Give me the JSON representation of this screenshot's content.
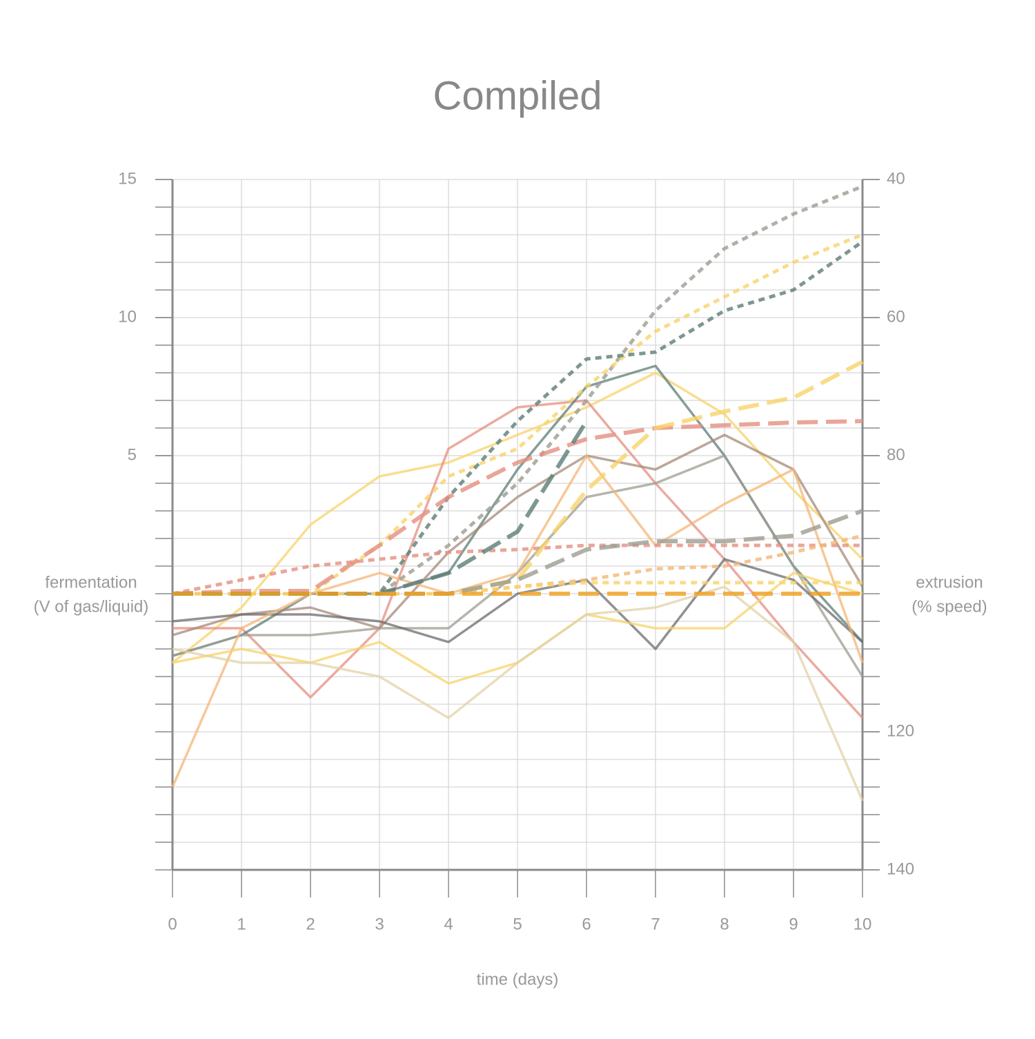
{
  "chart_data": {
    "type": "line",
    "title": "Compiled",
    "x_label": "time (days)",
    "y_label": [
      "fermentation",
      "(V of gas/liquid)"
    ],
    "y2_label": [
      "extrusion",
      "(% speed)"
    ],
    "x": [
      0,
      1,
      2,
      3,
      4,
      5,
      6,
      7,
      8,
      9,
      10
    ],
    "xlim": [
      0,
      10
    ],
    "xticks": [
      0,
      1,
      2,
      3,
      4,
      5,
      6,
      7,
      8,
      9,
      10
    ],
    "ylim": [
      -10,
      15
    ],
    "yticks": [
      5,
      10,
      15
    ],
    "y2lim": [
      140,
      40
    ],
    "y2ticks": [
      40,
      60,
      80,
      120,
      140
    ],
    "grid": true,
    "series": [
      {
        "color": "#f7d36a",
        "style": "solid",
        "values": [
          -2.5,
          -0.5,
          2.5,
          4.25,
          4.75,
          5.75,
          6.75,
          8,
          6.5,
          3.75,
          1.25
        ]
      },
      {
        "color": "#e58e80",
        "style": "solid",
        "values": [
          -1.25,
          -1.25,
          -3.75,
          -1.25,
          5.25,
          6.75,
          7,
          4,
          1.25,
          -1.75,
          -4.5
        ]
      },
      {
        "color": "#5c7d77",
        "style": "solid",
        "values": [
          -2.25,
          -1.5,
          0,
          0,
          0.75,
          4.5,
          7.5,
          8.25,
          5,
          1,
          -1.75
        ]
      },
      {
        "color": "#a68a78",
        "style": "solid",
        "values": [
          -1.5,
          -0.75,
          -0.5,
          -1.25,
          1.5,
          3.5,
          5,
          4.5,
          5.75,
          4.5,
          0.25
        ]
      },
      {
        "color": "#9c9c90",
        "style": "solid",
        "values": [
          -2.25,
          -1.5,
          -1.5,
          -1.25,
          -1.25,
          0.75,
          3.5,
          4,
          5,
          1,
          -3
        ]
      },
      {
        "color": "#6c6c6c",
        "style": "solid",
        "values": [
          -1,
          -0.75,
          -0.75,
          -1,
          -1.75,
          0,
          0.5,
          -2,
          1.25,
          0.5,
          -1.75
        ]
      },
      {
        "color": "#f4b676",
        "style": "solid",
        "values": [
          -7,
          -1.25,
          0,
          0.75,
          0,
          0.75,
          5,
          1.75,
          3.25,
          4.5,
          -2.5
        ]
      },
      {
        "color": "#f7d36a",
        "style": "solid",
        "values": [
          -2.5,
          -2,
          -2.5,
          -1.75,
          -3.25,
          -2.5,
          -0.75,
          -1.25,
          -1.25,
          0.75,
          0
        ]
      },
      {
        "color": "#e2d2a6",
        "style": "solid",
        "values": [
          -2,
          -2.5,
          -2.5,
          -3,
          -4.5,
          -2.5,
          -0.75,
          -0.5,
          0.25,
          -1.75,
          -7.5
        ]
      },
      {
        "color": "#9c9c90",
        "style": "dotted",
        "values": [
          0,
          0,
          0,
          0,
          1.75,
          4,
          7,
          10.25,
          12.5,
          13.75,
          14.75
        ]
      },
      {
        "color": "#f7d36a",
        "style": "dotted",
        "values": [
          0,
          0,
          0,
          1.75,
          4.25,
          5.25,
          7.5,
          9.5,
          10.75,
          12,
          13
        ]
      },
      {
        "color": "#5c7d77",
        "style": "dotted",
        "values": [
          0,
          0,
          0,
          0,
          3.5,
          6.25,
          8.5,
          8.75,
          10.25,
          11,
          12.75
        ]
      },
      {
        "color": "#e58e80",
        "style": "dotted",
        "values": [
          0,
          0.5,
          1,
          1.25,
          1.5,
          1.6,
          1.75,
          1.75,
          1.75,
          1.75,
          1.75
        ]
      },
      {
        "color": "#f4b676",
        "style": "dotted",
        "values": [
          0,
          0,
          0,
          0,
          0,
          0.25,
          0.5,
          0.9,
          1,
          1.5,
          2.1
        ]
      },
      {
        "color": "#f7d36a",
        "style": "dotted",
        "values": [
          0,
          0,
          0,
          0,
          0,
          0.25,
          0.4,
          0.4,
          0.4,
          0.4,
          0.4
        ]
      },
      {
        "color": "#e58e80",
        "style": "dashed",
        "values": [
          0,
          0.1,
          0.1,
          1.75,
          3.5,
          4.75,
          5.6,
          6,
          6.1,
          6.2,
          6.25
        ]
      },
      {
        "color": "#f7d36a",
        "style": "dashed",
        "values": [
          0,
          0,
          0,
          0,
          0,
          0.5,
          3.75,
          6,
          6.6,
          7.1,
          8.4
        ]
      },
      {
        "color": "#9c9c90",
        "style": "dashed",
        "values": [
          0,
          0,
          0,
          0,
          0,
          0.5,
          1.6,
          1.9,
          1.9,
          2.1,
          3
        ]
      },
      {
        "color": "#5c7d77",
        "style": "dashed",
        "values": [
          0,
          0,
          0,
          0,
          0.75,
          2.25,
          6.25,
          null,
          null,
          null,
          null
        ]
      },
      {
        "color": "#f0a020",
        "style": "dashed",
        "values": [
          0,
          0,
          0,
          0,
          0,
          0,
          0,
          0,
          0,
          0,
          0
        ]
      }
    ]
  }
}
